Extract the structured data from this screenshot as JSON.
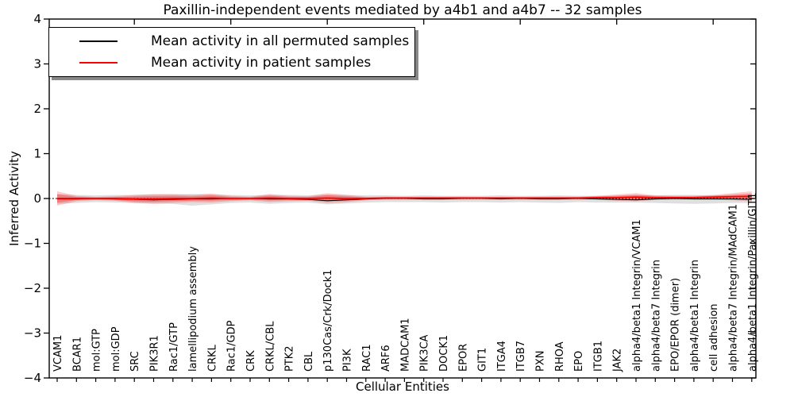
{
  "figure": {
    "title": "Paxillin-independent events mediated by a4b1 and a4b7 -- 32 samples",
    "xlabel": "Cellular Entities",
    "ylabel": "Inferred Activity"
  },
  "legend": {
    "items": [
      {
        "label": "Mean activity in all permuted samples",
        "color": "#000000"
      },
      {
        "label": "Mean activity in patient samples",
        "color": "#ff0000"
      }
    ]
  },
  "colors": {
    "permuted_line": "#000000",
    "patient_line": "#ff0000",
    "permuted_band": "rgba(128,128,128,0.25)",
    "patient_band_outer": "rgba(255,0,0,0.20)",
    "patient_band_inner": "rgba(255,0,0,0.28)",
    "axis": "#000000"
  },
  "chart_data": {
    "type": "line",
    "title": "Paxillin-independent events mediated by a4b1 and a4b7 -- 32 samples",
    "xlabel": "Cellular Entities",
    "ylabel": "Inferred Activity",
    "ylim": [
      -4,
      4
    ],
    "yticks": [
      4,
      3,
      2,
      1,
      0,
      -1,
      -2,
      -3,
      -4
    ],
    "xtick_major_indices": [
      4,
      9,
      14,
      19,
      24,
      29,
      34
    ],
    "grid": false,
    "legend_position": "upper left",
    "zero_line": {
      "style": "dotted",
      "color": "#000000",
      "y": 0
    },
    "categories": [
      "VCAM1",
      "BCAR1",
      "mol:GTP",
      "mol:GDP",
      "SRC",
      "PIK3R1",
      "Rac1/GTP",
      "lamellipodium assembly",
      "CRKL",
      "Rac1/GDP",
      "CRK",
      "CRKL/CBL",
      "PTK2",
      "CBL",
      "p130Cas/Crk/Dock1",
      "PI3K",
      "RAC1",
      "ARF6",
      "MADCAM1",
      "PIK3CA",
      "DOCK1",
      "EPOR",
      "GIT1",
      "ITGA4",
      "ITGB7",
      "PXN",
      "RHOA",
      "EPO",
      "ITGB1",
      "JAK2",
      "alpha4/beta1 Integrin/VCAM1",
      "alpha4/beta7 Integrin",
      "EPO/EPOR (dimer)",
      "alpha4/beta1 Integrin",
      "cell adhesion",
      "alpha4/beta7 Integrin/MAdCAM1",
      "alpha4/beta1 Integrin/Paxillin/GIT1"
    ],
    "series": [
      {
        "name": "Mean activity in all permuted samples",
        "color": "#000000",
        "width": 1.1,
        "values": [
          -0.01,
          -0.01,
          0,
          -0.01,
          -0.02,
          -0.03,
          -0.02,
          -0.01,
          -0.01,
          0,
          0,
          -0.01,
          -0.01,
          -0.02,
          -0.05,
          -0.03,
          -0.01,
          0,
          0,
          -0.01,
          -0.01,
          0,
          0,
          -0.01,
          0,
          -0.01,
          -0.01,
          0,
          -0.01,
          -0.02,
          -0.03,
          -0.01,
          0,
          -0.01,
          -0.01,
          -0.01,
          -0.02
        ]
      },
      {
        "name": "Mean activity in patient samples",
        "color": "#ff0000",
        "width": 1.8,
        "values": [
          0,
          0,
          0,
          0,
          -0.01,
          -0.01,
          0,
          0,
          0.01,
          0,
          0,
          0.01,
          0,
          0,
          0.01,
          0,
          0,
          0.01,
          0.01,
          0.01,
          0.01,
          0.01,
          0.01,
          0.01,
          0.01,
          0.01,
          0.01,
          0.01,
          0.02,
          0.02,
          0.03,
          0.02,
          0.02,
          0.02,
          0.03,
          0.04,
          0.05
        ]
      }
    ],
    "bands": [
      {
        "name": "permuted-std-band",
        "color": "rgba(128,128,128,0.25)",
        "upper": [
          0.1,
          0.08,
          0.07,
          0.08,
          0.08,
          0.09,
          0.09,
          0.1,
          0.09,
          0.08,
          0.07,
          0.08,
          0.08,
          0.07,
          0.09,
          0.08,
          0.07,
          0.07,
          0.06,
          0.07,
          0.06,
          0.06,
          0.06,
          0.07,
          0.06,
          0.06,
          0.07,
          0.06,
          0.06,
          0.06,
          0.07,
          0.07,
          0.08,
          0.08,
          0.07,
          0.07,
          0.07
        ],
        "lower": [
          -0.12,
          -0.1,
          -0.08,
          -0.09,
          -0.1,
          -0.11,
          -0.12,
          -0.16,
          -0.13,
          -0.1,
          -0.09,
          -0.12,
          -0.1,
          -0.09,
          -0.13,
          -0.11,
          -0.09,
          -0.08,
          -0.08,
          -0.08,
          -0.09,
          -0.08,
          -0.08,
          -0.09,
          -0.08,
          -0.09,
          -0.1,
          -0.08,
          -0.09,
          -0.09,
          -0.09,
          -0.1,
          -0.11,
          -0.12,
          -0.11,
          -0.1,
          -0.1
        ]
      },
      {
        "name": "patient-std-band-outer",
        "color": "rgba(255,0,0,0.20)",
        "upper": [
          0.16,
          0.06,
          0.035,
          0.05,
          0.08,
          0.1,
          0.1,
          0.08,
          0.11,
          0.06,
          0.04,
          0.1,
          0.06,
          0.05,
          0.12,
          0.08,
          0.04,
          0.04,
          0.04,
          0.04,
          0.04,
          0.04,
          0.035,
          0.035,
          0.035,
          0.04,
          0.04,
          0.04,
          0.06,
          0.09,
          0.12,
          0.07,
          0.06,
          0.06,
          0.08,
          0.12,
          0.16
        ],
        "lower": [
          -0.16,
          -0.06,
          -0.035,
          -0.05,
          -0.1,
          -0.12,
          -0.1,
          -0.08,
          -0.09,
          -0.06,
          -0.04,
          -0.08,
          -0.06,
          -0.05,
          -0.1,
          -0.08,
          -0.04,
          -0.02,
          -0.02,
          -0.02,
          -0.02,
          -0.02,
          -0.015,
          -0.015,
          -0.015,
          -0.02,
          -0.02,
          -0.02,
          -0.02,
          -0.05,
          -0.06,
          -0.03,
          -0.02,
          -0.02,
          -0.02,
          -0.04,
          -0.06
        ]
      },
      {
        "name": "patient-std-band-inner",
        "color": "rgba(255,0,0,0.28)",
        "upper": [
          0.096,
          0.036,
          0.021,
          0.03,
          0.044,
          0.056,
          0.06,
          0.048,
          0.07,
          0.036,
          0.024,
          0.064,
          0.036,
          0.03,
          0.076,
          0.048,
          0.024,
          0.028,
          0.028,
          0.028,
          0.028,
          0.028,
          0.025,
          0.025,
          0.025,
          0.028,
          0.028,
          0.028,
          0.044,
          0.062,
          0.084,
          0.05,
          0.044,
          0.044,
          0.06,
          0.088,
          0.116
        ],
        "lower": [
          -0.096,
          -0.036,
          -0.021,
          -0.03,
          -0.064,
          -0.076,
          -0.06,
          -0.048,
          -0.05,
          -0.036,
          -0.024,
          -0.044,
          -0.036,
          -0.03,
          -0.056,
          -0.048,
          -0.024,
          -0.008,
          -0.008,
          -0.008,
          -0.008,
          -0.008,
          -0.005,
          -0.005,
          -0.005,
          -0.008,
          -0.008,
          -0.008,
          -0.004,
          -0.022,
          -0.024,
          -0.01,
          -0.004,
          -0.004,
          0,
          -0.008,
          -0.016
        ]
      }
    ]
  }
}
